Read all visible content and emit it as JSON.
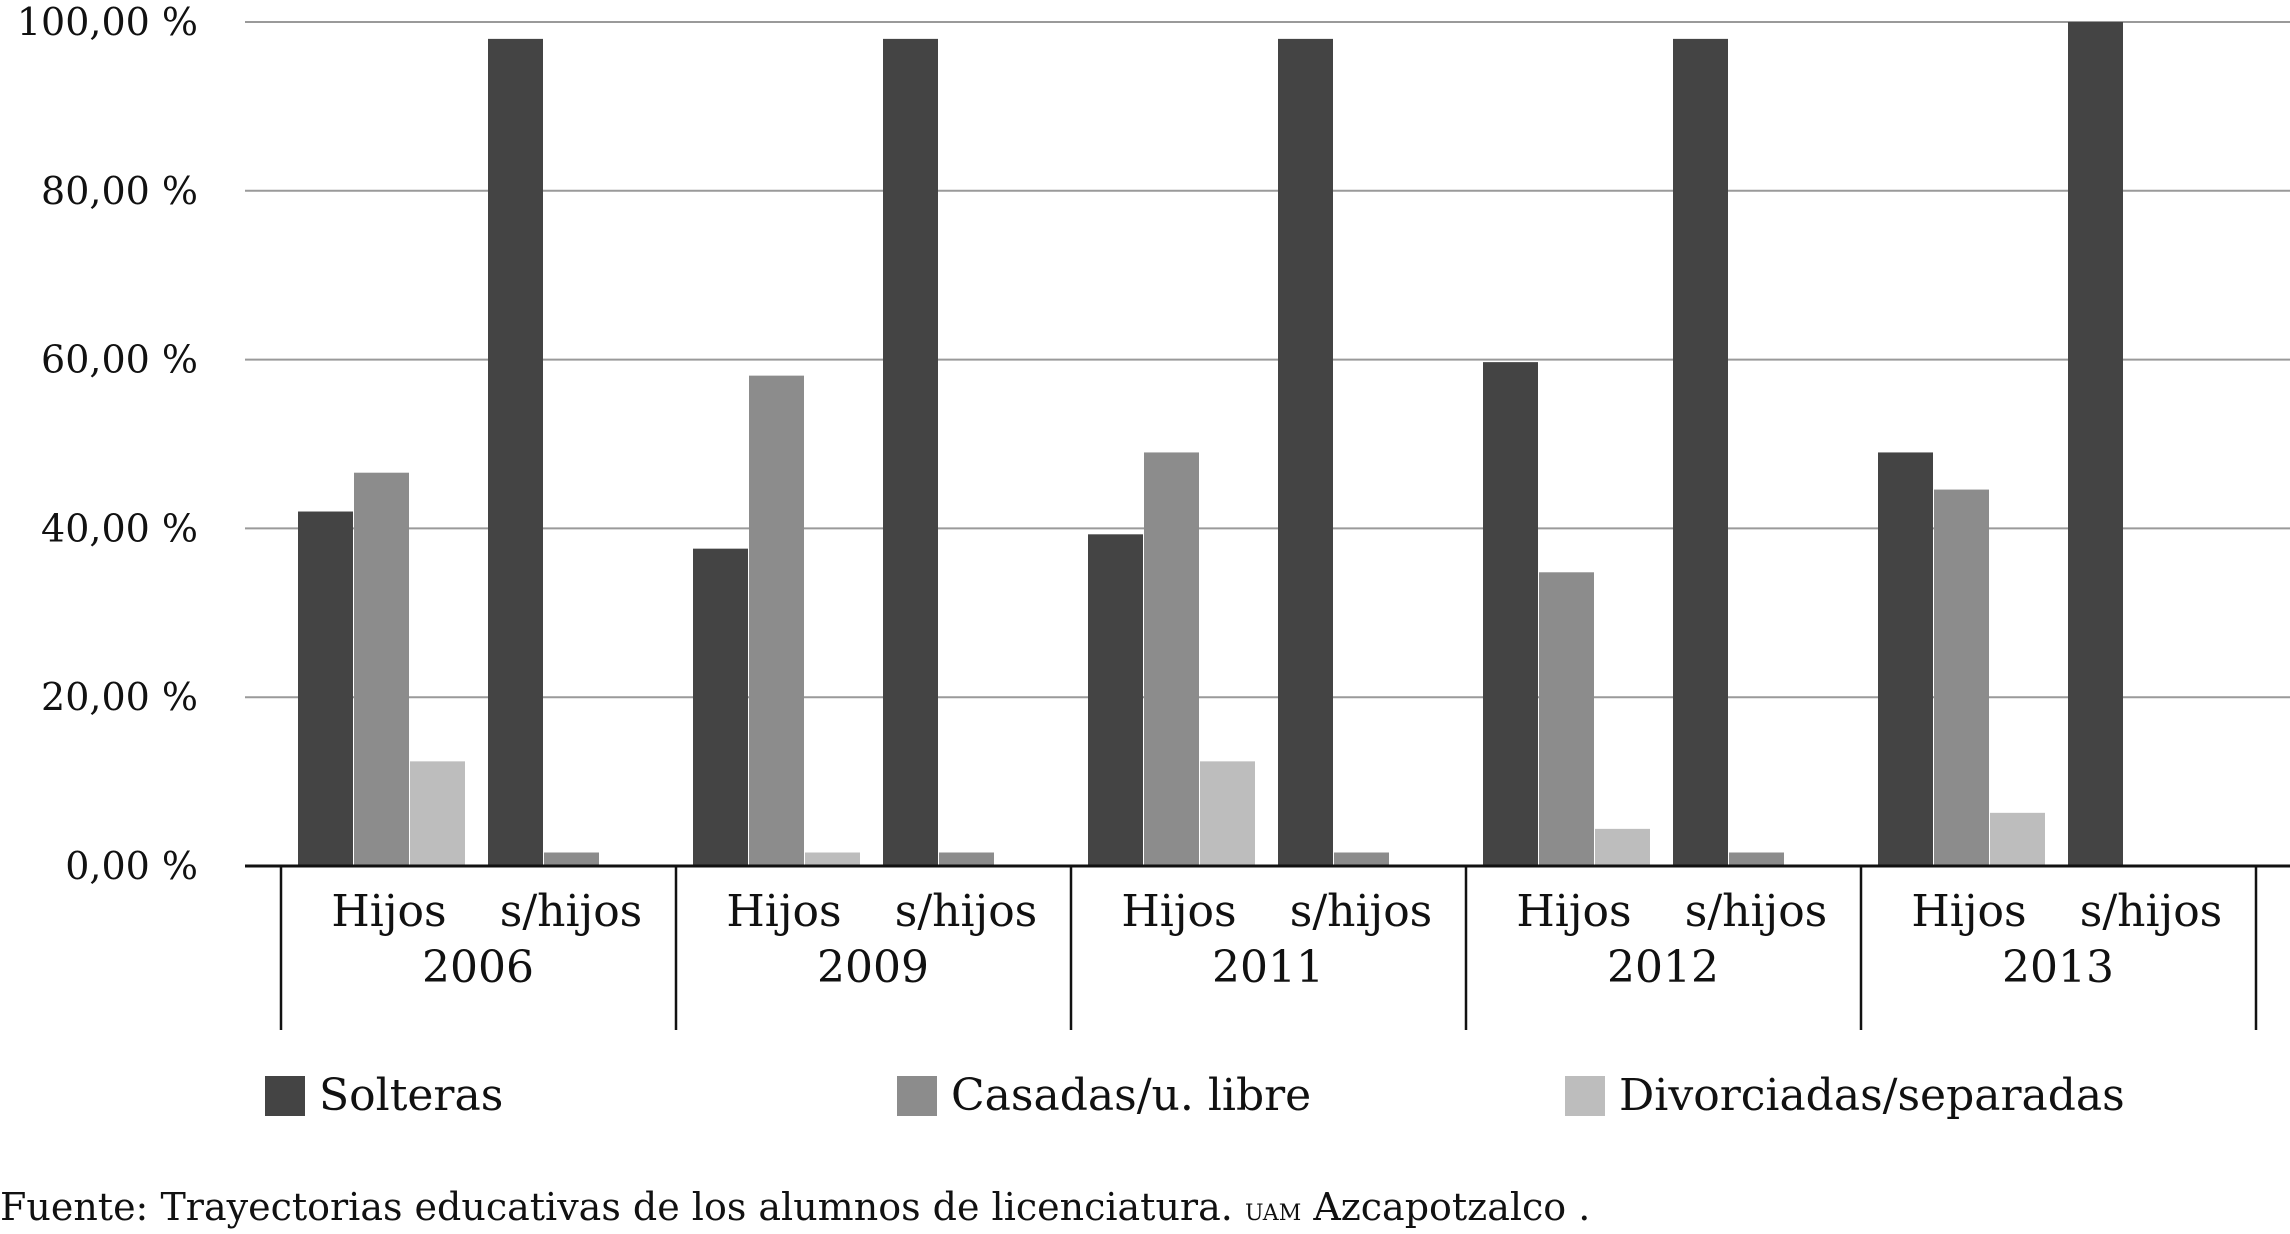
{
  "chart_data": {
    "type": "bar",
    "title": "",
    "xlabel": "",
    "ylabel": "",
    "ylim": [
      0,
      100
    ],
    "y_ticks": [
      "0,00 %",
      "20,00 %",
      "40,00 %",
      "60,00 %",
      "80,00 %",
      "100,00 %"
    ],
    "grid": true,
    "legend_position": "bottom",
    "groups": [
      {
        "year": "2006",
        "subgroups": [
          "Hijos",
          "s/hijos"
        ]
      },
      {
        "year": "2009",
        "subgroups": [
          "Hijos",
          "s/hijos"
        ]
      },
      {
        "year": "2011",
        "subgroups": [
          "Hijos",
          "s/hijos"
        ]
      },
      {
        "year": "2012",
        "subgroups": [
          "Hijos",
          "s/hijos"
        ]
      },
      {
        "year": "2013",
        "subgroups": [
          "Hijos",
          "s/hijos"
        ]
      }
    ],
    "categories": [
      "Hijos 2006",
      "s/hijos 2006",
      "Hijos 2009",
      "s/hijos 2009",
      "Hijos 2011",
      "s/hijos 2011",
      "Hijos 2012",
      "s/hijos 2012",
      "Hijos 2013",
      "s/hijos 2013"
    ],
    "series": [
      {
        "name": "Solteras",
        "color": "#444444",
        "values": [
          42,
          98,
          37.6,
          98,
          39.3,
          98,
          59.7,
          98,
          49,
          100
        ]
      },
      {
        "name": "Casadas/u. libre",
        "color": "#8c8c8c",
        "values": [
          46.6,
          1.6,
          58.1,
          1.6,
          49,
          1.6,
          34.8,
          1.6,
          44.6,
          0
        ]
      },
      {
        "name": "Divorciadas/separadas",
        "color": "#bdbdbd",
        "values": [
          12.4,
          0,
          1.6,
          0,
          12.4,
          0,
          4.4,
          0,
          6.3,
          0
        ]
      }
    ]
  },
  "legend": {
    "items": [
      "Solteras",
      "Casadas/u. libre",
      "Divorciadas/separadas"
    ]
  },
  "source": {
    "prefix": "Fuente: Trayectorias educativas de los alumnos de licenciatura.",
    "institution": "UAM",
    "suffix": "Azcapotzalco ."
  }
}
